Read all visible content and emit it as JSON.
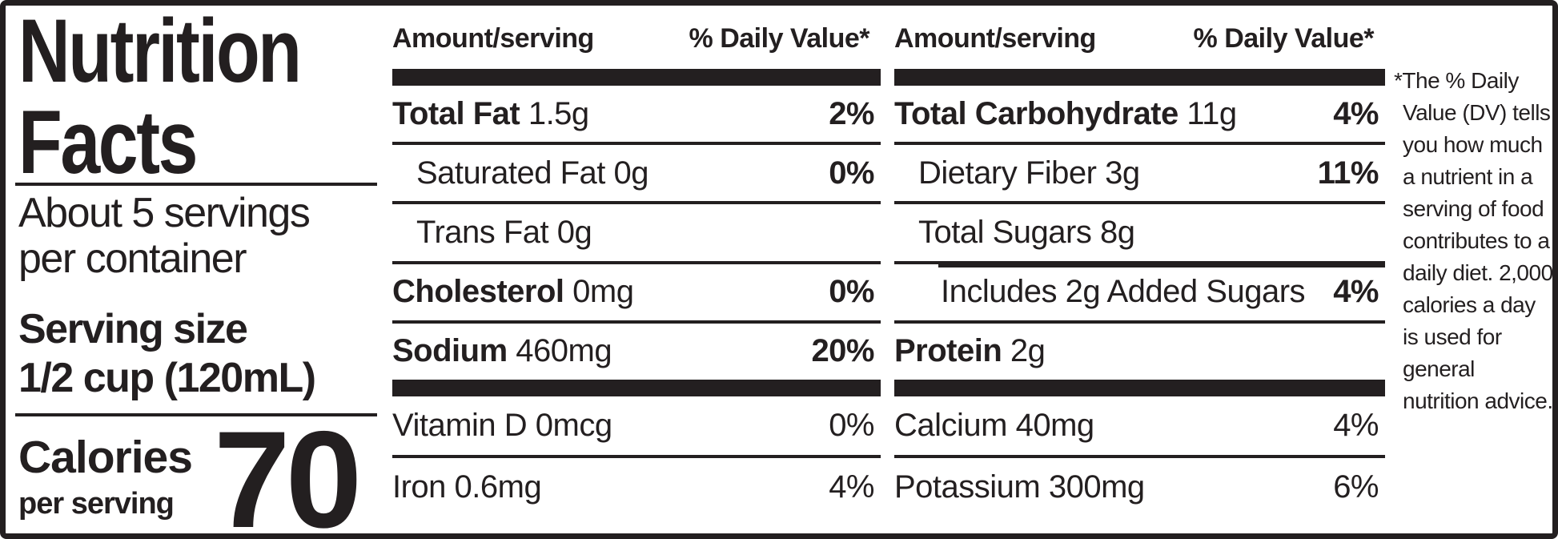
{
  "colors": {
    "ink": "#231f20",
    "paper": "#ffffff"
  },
  "header": {
    "title_line1": "Nutrition",
    "title_line2": "Facts",
    "servings_per_container_line1": "About 5 servings",
    "servings_per_container_line2": "per container",
    "serving_size_label": "Serving size",
    "serving_size_value": "1/2 cup (120mL)",
    "calories_label": "Calories",
    "calories_sublabel": "per serving",
    "calories_value": "70"
  },
  "table": {
    "amount_header": "Amount/serving",
    "dv_header": "% Daily Value*",
    "columns": [
      {
        "rows": [
          {
            "name": "Total Fat",
            "amount": "1.5g",
            "dv": "2%",
            "bold": true,
            "dv_bold": true,
            "indent": 0
          },
          {
            "name": "Saturated Fat",
            "amount": "0g",
            "dv": "0%",
            "bold": false,
            "dv_bold": true,
            "indent": 1
          },
          {
            "name": "Trans Fat",
            "amount": "0g",
            "dv": "",
            "bold": false,
            "dv_bold": false,
            "indent": 1
          },
          {
            "name": "Cholesterol",
            "amount": "0mg",
            "dv": "0%",
            "bold": true,
            "dv_bold": true,
            "indent": 0
          },
          {
            "name": "Sodium",
            "amount": "460mg",
            "dv": "20%",
            "bold": true,
            "dv_bold": true,
            "indent": 0
          }
        ],
        "micronutrients": [
          {
            "name": "Vitamin D",
            "amount": "0mcg",
            "dv": "0%"
          },
          {
            "name": "Iron",
            "amount": "0.6mg",
            "dv": "4%"
          }
        ]
      },
      {
        "rows": [
          {
            "name": "Total Carbohydrate",
            "amount": "11g",
            "dv": "4%",
            "bold": true,
            "dv_bold": true,
            "indent": 0
          },
          {
            "name": "Dietary Fiber",
            "amount": "3g",
            "dv": "11%",
            "bold": false,
            "dv_bold": true,
            "indent": 1
          },
          {
            "name": "Total Sugars",
            "amount": "8g",
            "dv": "",
            "bold": false,
            "dv_bold": false,
            "indent": 1
          },
          {
            "name": "Includes 2g Added Sugars",
            "amount": "",
            "dv": "4%",
            "bold": false,
            "dv_bold": true,
            "indent": 2,
            "sep_indent": true
          },
          {
            "name": "Protein",
            "amount": "2g",
            "dv": "",
            "bold": true,
            "dv_bold": false,
            "indent": 0
          }
        ],
        "micronutrients": [
          {
            "name": "Calcium",
            "amount": "40mg",
            "dv": "4%"
          },
          {
            "name": "Potassium",
            "amount": "300mg",
            "dv": "6%"
          }
        ]
      }
    ]
  },
  "footnote": "*The % Daily Value (DV) tells you how much a nutrient in a serving of food contributes to a daily diet. 2,000 calories a day is used for general nutrition advice."
}
